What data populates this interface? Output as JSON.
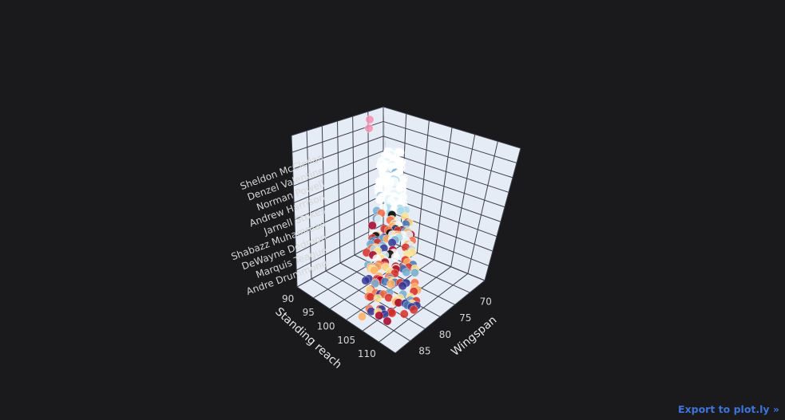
{
  "export_label": "Export to plot.ly »",
  "chart_data": {
    "type": "scatter3d",
    "xlabel": "Standing reach",
    "ylabel": "Wingspan",
    "zlabel": "",
    "x_ticks": [
      90,
      95,
      100,
      105,
      110
    ],
    "y_ticks": [
      70,
      75,
      80,
      85
    ],
    "z_ticks": [
      "Andre Drummond",
      "Marquis Teague",
      "DeWayne Dedmon",
      "Shabazz Muhammad",
      "Jarnell Stokes",
      "Andrew Harrison",
      "Norman Powell",
      "Denzel Valentine",
      "Sheldon McClellan"
    ],
    "xlim": [
      88,
      112
    ],
    "ylim": [
      66,
      88
    ],
    "colorscale": [
      "#313695",
      "#4575b4",
      "#74add1",
      "#abd9e9",
      "#e0f3f8",
      "#ffffff",
      "#fee090",
      "#fdae61",
      "#f46d43",
      "#d73027",
      "#a50026",
      "#f48fb1"
    ]
  }
}
